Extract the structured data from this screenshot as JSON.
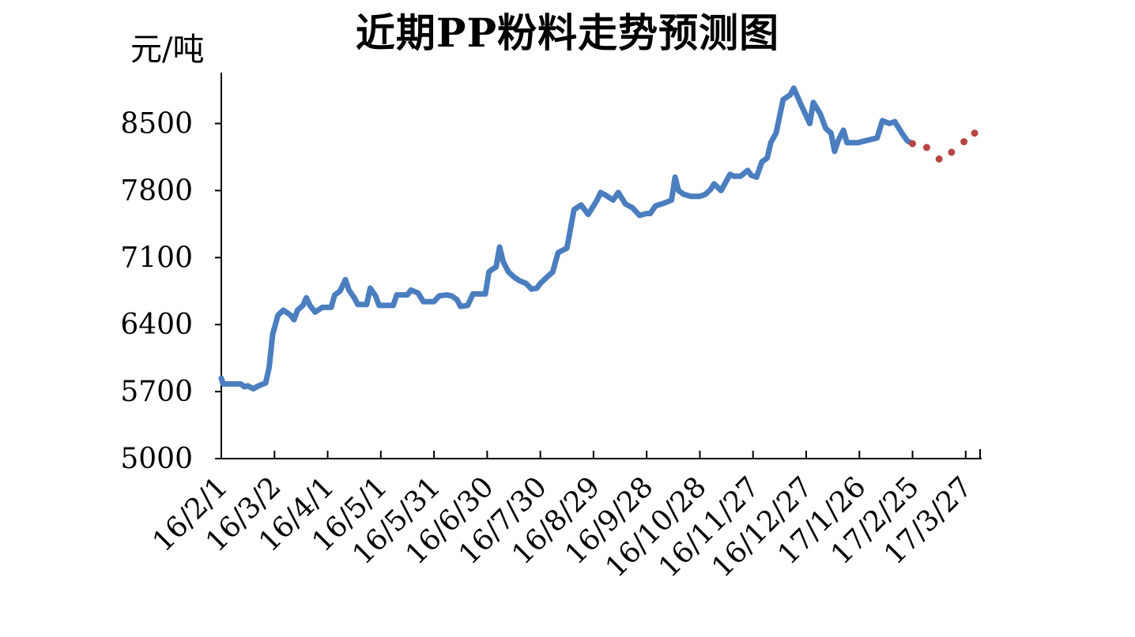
{
  "chart_data": {
    "type": "line",
    "title": "近期PP粉料走势预测图",
    "ylabel": "元/吨",
    "xlabel": "",
    "ylim": [
      5000,
      8900
    ],
    "yticks": [
      5000,
      5700,
      6400,
      7100,
      7800,
      8500
    ],
    "xlim": [
      "16/2/1",
      "17/4/5"
    ],
    "categories": [
      "16/2/1",
      "16/3/2",
      "16/4/1",
      "16/5/1",
      "16/5/31",
      "16/6/30",
      "16/7/30",
      "16/8/29",
      "16/9/28",
      "16/10/28",
      "16/11/27",
      "16/12/27",
      "17/1/26",
      "17/2/25",
      "17/3/27"
    ],
    "grid": false,
    "legend": "none",
    "series": [
      {
        "style": "solid",
        "color": "#4a7ebf",
        "points": [
          [
            "16/2/1",
            5840
          ],
          [
            "16/2/2",
            5780
          ],
          [
            "16/2/8",
            5780
          ],
          [
            "16/2/12",
            5780
          ],
          [
            "16/2/14",
            5750
          ],
          [
            "16/2/16",
            5760
          ],
          [
            "16/2/19",
            5730
          ],
          [
            "16/2/22",
            5760
          ],
          [
            "16/2/26",
            5790
          ],
          [
            "16/2/28",
            5950
          ],
          [
            "16/3/1",
            6300
          ],
          [
            "16/3/4",
            6500
          ],
          [
            "16/3/7",
            6550
          ],
          [
            "16/3/11",
            6500
          ],
          [
            "16/3/13",
            6450
          ],
          [
            "16/3/15",
            6550
          ],
          [
            "16/3/18",
            6600
          ],
          [
            "16/3/20",
            6680
          ],
          [
            "16/3/22",
            6600
          ],
          [
            "16/3/25",
            6530
          ],
          [
            "16/3/29",
            6580
          ],
          [
            "16/4/3",
            6580
          ],
          [
            "16/4/5",
            6710
          ],
          [
            "16/4/8",
            6750
          ],
          [
            "16/4/11",
            6870
          ],
          [
            "16/4/13",
            6760
          ],
          [
            "16/4/16",
            6680
          ],
          [
            "16/4/18",
            6610
          ],
          [
            "16/4/23",
            6610
          ],
          [
            "16/4/25",
            6780
          ],
          [
            "16/4/28",
            6700
          ],
          [
            "16/4/30",
            6600
          ],
          [
            "16/5/8",
            6600
          ],
          [
            "16/5/10",
            6710
          ],
          [
            "16/5/16",
            6710
          ],
          [
            "16/5/18",
            6760
          ],
          [
            "16/5/22",
            6730
          ],
          [
            "16/5/25",
            6640
          ],
          [
            "16/5/31",
            6640
          ],
          [
            "16/6/3",
            6700
          ],
          [
            "16/6/7",
            6710
          ],
          [
            "16/6/10",
            6700
          ],
          [
            "16/6/13",
            6660
          ],
          [
            "16/6/15",
            6590
          ],
          [
            "16/6/19",
            6600
          ],
          [
            "16/6/22",
            6720
          ],
          [
            "16/6/29",
            6720
          ],
          [
            "16/7/1",
            6950
          ],
          [
            "16/7/3",
            6980
          ],
          [
            "16/7/5",
            7000
          ],
          [
            "16/7/7",
            7210
          ],
          [
            "16/7/9",
            7060
          ],
          [
            "16/7/12",
            6950
          ],
          [
            "16/7/15",
            6900
          ],
          [
            "16/7/18",
            6860
          ],
          [
            "16/7/22",
            6830
          ],
          [
            "16/7/25",
            6770
          ],
          [
            "16/7/28",
            6780
          ],
          [
            "16/7/30",
            6830
          ],
          [
            "16/8/3",
            6900
          ],
          [
            "16/8/6",
            6950
          ],
          [
            "16/8/9",
            7150
          ],
          [
            "16/8/14",
            7200
          ],
          [
            "16/8/18",
            7600
          ],
          [
            "16/8/22",
            7650
          ],
          [
            "16/8/26",
            7550
          ],
          [
            "16/8/31",
            7700
          ],
          [
            "16/9/2",
            7780
          ],
          [
            "16/9/5",
            7750
          ],
          [
            "16/9/9",
            7700
          ],
          [
            "16/9/12",
            7780
          ],
          [
            "16/9/16",
            7660
          ],
          [
            "16/9/20",
            7620
          ],
          [
            "16/9/24",
            7540
          ],
          [
            "16/9/28",
            7560
          ],
          [
            "16/9/30",
            7560
          ],
          [
            "16/10/3",
            7640
          ],
          [
            "16/10/8",
            7670
          ],
          [
            "16/10/12",
            7700
          ],
          [
            "16/10/14",
            7940
          ],
          [
            "16/10/16",
            7800
          ],
          [
            "16/10/19",
            7760
          ],
          [
            "16/10/23",
            7740
          ],
          [
            "16/10/28",
            7740
          ],
          [
            "16/10/31",
            7760
          ],
          [
            "16/11/3",
            7810
          ],
          [
            "16/11/5",
            7870
          ],
          [
            "16/11/9",
            7800
          ],
          [
            "16/11/14",
            7970
          ],
          [
            "16/11/16",
            7950
          ],
          [
            "16/11/20",
            7950
          ],
          [
            "16/11/24",
            8010
          ],
          [
            "16/11/26",
            7960
          ],
          [
            "16/11/29",
            7940
          ],
          [
            "16/12/2",
            8100
          ],
          [
            "16/12/5",
            8140
          ],
          [
            "16/12/7",
            8300
          ],
          [
            "16/12/10",
            8400
          ],
          [
            "16/12/14",
            8750
          ],
          [
            "16/12/18",
            8800
          ],
          [
            "16/12/20",
            8870
          ],
          [
            "16/12/24",
            8700
          ],
          [
            "16/12/26",
            8620
          ],
          [
            "16/12/29",
            8500
          ],
          [
            "16/12/31",
            8720
          ],
          [
            "17/1/4",
            8600
          ],
          [
            "17/1/7",
            8450
          ],
          [
            "17/1/10",
            8400
          ],
          [
            "17/1/12",
            8210
          ],
          [
            "17/1/14",
            8320
          ],
          [
            "17/1/17",
            8430
          ],
          [
            "17/1/19",
            8300
          ],
          [
            "17/1/25",
            8300
          ],
          [
            "17/2/5",
            8350
          ],
          [
            "17/2/8",
            8530
          ],
          [
            "17/2/12",
            8500
          ],
          [
            "17/2/15",
            8520
          ],
          [
            "17/2/19",
            8400
          ],
          [
            "17/2/22",
            8320
          ],
          [
            "17/2/25",
            8290
          ]
        ]
      },
      {
        "style": "dotted",
        "color": "#b84444",
        "points": [
          [
            "17/2/25",
            8290
          ],
          [
            "17/3/5",
            8250
          ],
          [
            "17/3/12",
            8130
          ],
          [
            "17/3/19",
            8200
          ],
          [
            "17/3/26",
            8310
          ],
          [
            "17/4/1",
            8400
          ]
        ]
      }
    ]
  }
}
